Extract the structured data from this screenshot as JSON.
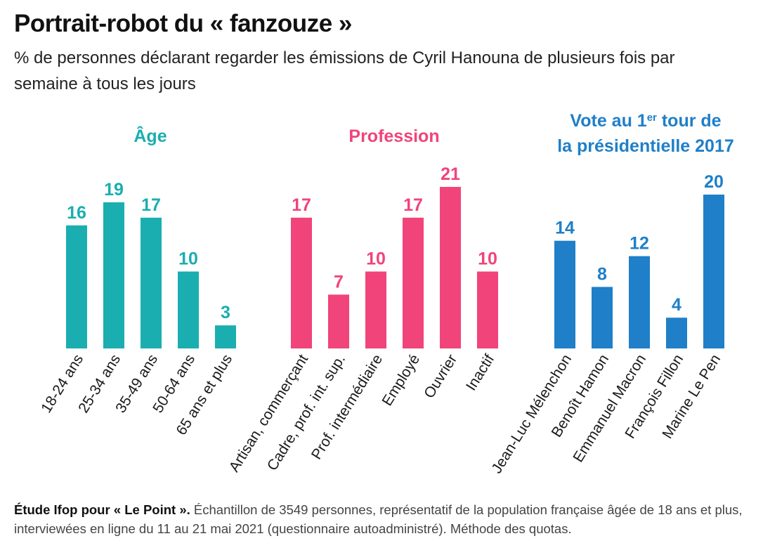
{
  "title": "Portrait-robot du « fanzouze »",
  "subtitle": "% de personnes déclarant regarder les émissions de Cyril Hanouna de plusieurs fois par semaine à tous les jours",
  "footer": {
    "lead": "Étude Ifop pour « Le Point ».",
    "text": " Échantillon de 3549 personnes, représentatif de la population française âgée de 18 ans et plus, interviewées en ligne du 11 au 21 mai 2021 (questionnaire autoadministré). Méthode des quotas."
  },
  "chart_data": [
    {
      "type": "bar",
      "title": "Âge",
      "color": "#1aaeb0",
      "categories": [
        "18-24 ans",
        "25-34 ans",
        "35-49 ans",
        "50-64 ans",
        "65 ans et plus"
      ],
      "values": [
        16,
        19,
        17,
        10,
        3
      ]
    },
    {
      "type": "bar",
      "title": "Profession",
      "color": "#f0447a",
      "categories": [
        "Artisan, commerçant",
        "Cadre, prof. int. sup.",
        "Prof. intermédiaire",
        "Employé",
        "Ouvrier",
        "Inactif"
      ],
      "values": [
        17,
        7,
        10,
        17,
        21,
        10
      ]
    },
    {
      "type": "bar",
      "title_lines": [
        "Vote au 1",
        "er",
        " tour de",
        "la présidentielle 2017"
      ],
      "color": "#1f7fc8",
      "categories": [
        "Jean-Luc Mélenchon",
        "Benoît Hamon",
        "Emmanuel Macron",
        "François Fillon",
        "Marine Le Pen"
      ],
      "values": [
        14,
        8,
        12,
        4,
        20
      ]
    }
  ]
}
